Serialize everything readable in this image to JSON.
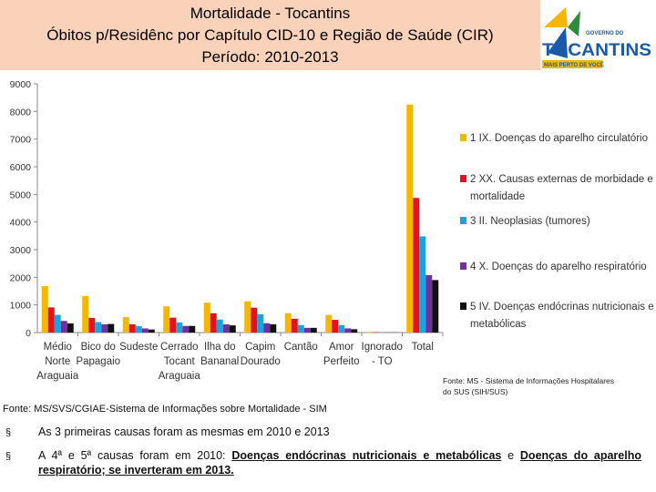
{
  "header": {
    "title": "Mortalidade - Tocantins",
    "subtitle": "Óbitos p/Residênc por Capítulo CID-10 e Região de Saúde (CIR)",
    "period": "Período: 2010-2013"
  },
  "logo": {
    "small_text": "GOVERNO DO",
    "name": "TOCANTINS",
    "slogan": "MAIS PERTO DE VOCÊ"
  },
  "chart_data": {
    "type": "bar",
    "title": "",
    "xlabel": "",
    "ylabel": "",
    "ylim": [
      0,
      9000
    ],
    "yticks": [
      0,
      1000,
      2000,
      3000,
      4000,
      5000,
      6000,
      7000,
      8000,
      9000
    ],
    "grid": false,
    "legend_position": "right",
    "categories": [
      [
        "Médio",
        "Norte",
        "Araguaia"
      ],
      [
        "Bico do",
        "Papagaio"
      ],
      [
        "Sudeste"
      ],
      [
        "Cerrado",
        "Tocant",
        "Araguaia"
      ],
      [
        "Ilha do",
        "Bananal"
      ],
      [
        "Capim",
        "Dourado"
      ],
      [
        "Cantão"
      ],
      [
        "Amor",
        "Perfeito"
      ],
      [
        "Ignorado",
        "- TO"
      ],
      [
        "Total"
      ]
    ],
    "series": [
      {
        "name": [
          "1 IX.  Doenças do aparelho circulatório"
        ],
        "color": "#f5b800",
        "values": [
          1680,
          1320,
          560,
          950,
          1080,
          1130,
          700,
          640,
          20,
          8250
        ]
      },
      {
        "name": [
          "2 XX.  Causas externas de morbidade e",
          "mortalidade"
        ],
        "color": "#e8101a",
        "values": [
          910,
          530,
          300,
          540,
          700,
          900,
          500,
          460,
          15,
          4870
        ]
      },
      {
        "name": [
          "3 II.  Neoplasias (tumores)"
        ],
        "color": "#1ca3de",
        "values": [
          640,
          380,
          230,
          370,
          470,
          660,
          270,
          270,
          10,
          3480
        ]
      },
      {
        "name": [
          "4 X.  Doenças do aparelho respiratório"
        ],
        "color": "#7030a0",
        "values": [
          420,
          300,
          150,
          240,
          300,
          340,
          170,
          150,
          8,
          2080
        ]
      },
      {
        "name": [
          "5 IV.  Doenças endócrinas nutricionais e",
          "metabólicas"
        ],
        "color": "#111111",
        "values": [
          330,
          310,
          110,
          240,
          260,
          300,
          170,
          120,
          5,
          1900
        ]
      }
    ]
  },
  "chart_source": [
    "Fonte: MS - Sistema de Informações Hospitalares",
    "do SUS (SIH/SUS)"
  ],
  "source_main": "Fonte: MS/SVS/CGIAE-Sistema de Informações sobre Mortalidade - SIM",
  "bullets": {
    "mark": "§",
    "b1": "As 3 primeiras causas foram as mesmas em 2010 e 2013",
    "b2_part1": "A 4ª e 5ª causas foram em 2010: ",
    "b2_u1": "Doenças endócrinas nutricionais e metabólicas",
    "b2_part2": " e ",
    "b2_u2": "Doenças do aparelho respiratório; se inverteram em 2013."
  }
}
